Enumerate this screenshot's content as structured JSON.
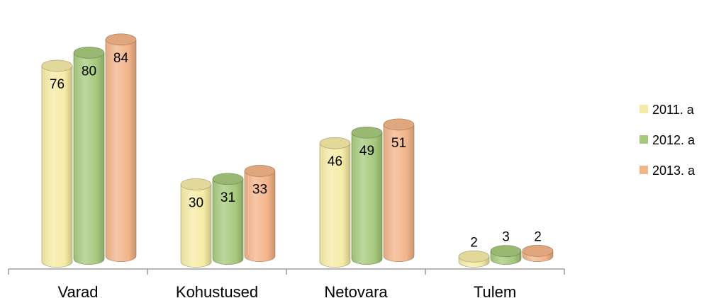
{
  "chart_data": {
    "type": "bar",
    "style": "3d-cylinder",
    "categories": [
      "Varad",
      "Kohustused",
      "Netovara",
      "Tulem"
    ],
    "series": [
      {
        "name": "2011. a",
        "values": [
          76,
          30,
          46,
          2
        ],
        "color": "#f6eba6"
      },
      {
        "name": "2012. a",
        "values": [
          80,
          31,
          49,
          3
        ],
        "color": "#a6c97c"
      },
      {
        "name": "2013. a",
        "values": [
          84,
          33,
          51,
          2
        ],
        "color": "#f3b489"
      }
    ],
    "ylim": [
      0,
      100
    ],
    "grid": false,
    "legend": "right",
    "data_labels": true
  }
}
